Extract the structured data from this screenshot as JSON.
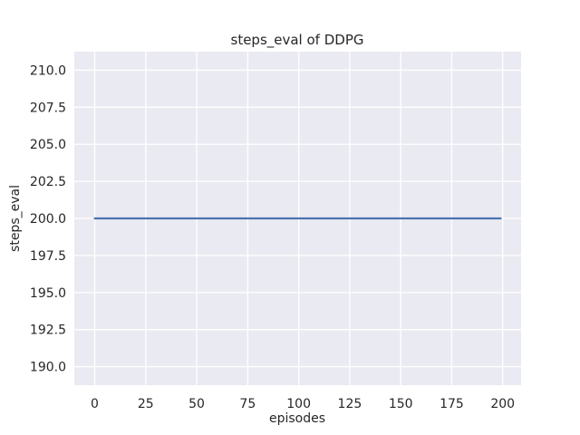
{
  "chart_data": {
    "type": "line",
    "title": "steps_eval of DDPG",
    "xlabel": "episodes",
    "ylabel": "steps_eval",
    "x_ticks": [
      0,
      25,
      50,
      75,
      100,
      125,
      150,
      175,
      200
    ],
    "x_tick_labels": [
      "0",
      "25",
      "50",
      "75",
      "100",
      "125",
      "150",
      "175",
      "200"
    ],
    "y_ticks": [
      190.0,
      192.5,
      195.0,
      197.5,
      200.0,
      202.5,
      205.0,
      207.5,
      210.0
    ],
    "y_tick_labels": [
      "190.0",
      "192.5",
      "195.0",
      "197.5",
      "200.0",
      "202.5",
      "205.0",
      "207.5",
      "210.0"
    ],
    "xlim": [
      -10,
      209
    ],
    "ylim": [
      188.75,
      211.25
    ],
    "grid": true,
    "legend": "none",
    "series": [
      {
        "name": "steps_eval",
        "x": [
          0,
          199
        ],
        "values": [
          200,
          200
        ],
        "note": "constant value 200 for all episodes 0-199"
      }
    ],
    "colors": {
      "line": "#4C72B0",
      "plot_bg": "#EAEAF2",
      "grid": "#FFFFFF",
      "text": "#262626",
      "figure_bg": "#FFFFFF"
    }
  }
}
